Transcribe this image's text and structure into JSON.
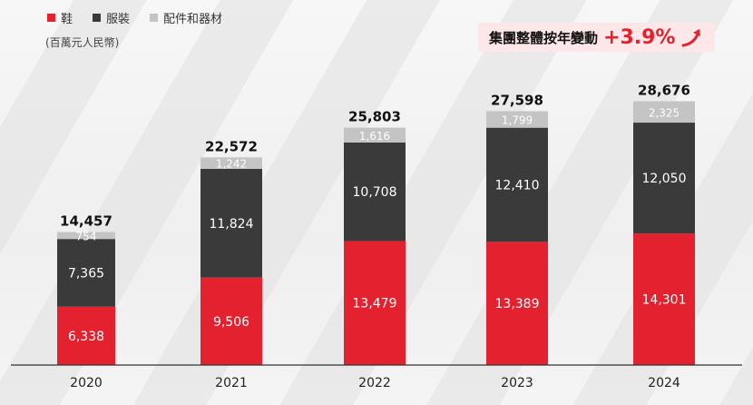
{
  "legend": [
    {
      "label": "鞋",
      "color": "#e3212f"
    },
    {
      "label": "服裝",
      "color": "#3a3a3a"
    },
    {
      "label": "配件和器材",
      "color": "#c4c4c4"
    }
  ],
  "unit_label": "(百萬元人民幣)",
  "highlight": {
    "label": "集團整體按年變動",
    "value": "+3.9%"
  },
  "chart_data": {
    "type": "bar",
    "stacked": true,
    "categories": [
      "2020",
      "2021",
      "2022",
      "2023",
      "2024"
    ],
    "series": [
      {
        "name": "鞋",
        "color": "#e3212f",
        "values": [
          6338,
          9506,
          13479,
          13389,
          14301
        ],
        "labels": [
          "6,338",
          "9,506",
          "13,479",
          "13,389",
          "14,301"
        ]
      },
      {
        "name": "服裝",
        "color": "#3a3a3a",
        "values": [
          7365,
          11824,
          10708,
          12410,
          12050
        ],
        "labels": [
          "7,365",
          "11,824",
          "10,708",
          "12,410",
          "12,050"
        ]
      },
      {
        "name": "配件和器材",
        "color": "#c4c4c4",
        "values": [
          754,
          1242,
          1616,
          1799,
          2325
        ],
        "labels": [
          "754",
          "1,242",
          "1,616",
          "1,799",
          "2,325"
        ]
      }
    ],
    "totals": [
      14457,
      22572,
      25803,
      27598,
      28676
    ],
    "total_labels": [
      "14,457",
      "22,572",
      "25,803",
      "27,598",
      "28,676"
    ],
    "ylim": [
      0,
      30600
    ]
  }
}
